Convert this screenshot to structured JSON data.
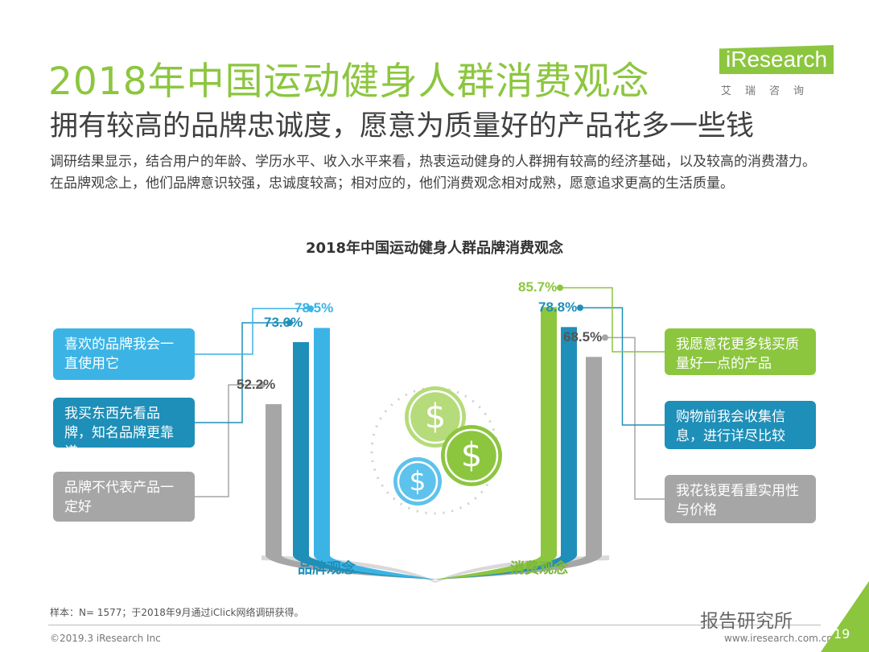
{
  "header": {
    "title": "2018年中国运动健身人群消费观念",
    "subtitle": "拥有较高的品牌忠诚度，愿意为质量好的产品花多一些钱",
    "description": "调研结果显示，结合用户的年龄、学历水平、收入水平来看，热衷运动健身的人群拥有较高的经济基础，以及较高的消费潜力。在品牌观念上，他们品牌意识较强，忠诚度较高；相对应的，他们消费观念相对成熟，愿意追求更高的生活质量。"
  },
  "logo": {
    "main": "iResearch",
    "sub": "艾瑞咨询"
  },
  "colors": {
    "green": "#8CC63F",
    "blue": "#3BB4E5",
    "teal": "#1E8FB8",
    "gray": "#A6A6A6",
    "text": "#404040"
  },
  "chart_data": {
    "type": "bar",
    "title": "2018年中国运动健身人群品牌消费观念",
    "groups": [
      {
        "name": "品牌观念",
        "items": [
          {
            "label": "喜欢的品牌我会一直使用它",
            "value": 78.5,
            "display": "78.5%",
            "color": "#3BB4E5"
          },
          {
            "label": "我买东西先看品牌，知名品牌更靠谱",
            "value": 73.6,
            "display": "73.6%",
            "color": "#1E8FB8"
          },
          {
            "label": "品牌不代表产品一定好",
            "value": 52.2,
            "display": "52.2%",
            "color": "#A6A6A6"
          }
        ]
      },
      {
        "name": "消费观念",
        "items": [
          {
            "label": "我愿意花更多钱买质量好一点的产品",
            "value": 85.7,
            "display": "85.7%",
            "color": "#8CC63F"
          },
          {
            "label": "购物前我会收集信息，进行详尽比较",
            "value": 78.8,
            "display": "78.8%",
            "color": "#1E8FB8"
          },
          {
            "label": "我花钱更看重实用性与价格",
            "value": 68.5,
            "display": "68.5%",
            "color": "#A6A6A6"
          }
        ]
      }
    ]
  },
  "footer": {
    "source": "样本：N= 1577；于2018年9月通过iClick网络调研获得。",
    "copyright": "©2019.3  iResearch Inc",
    "website": "www.iresearch.com.cn",
    "page": "19",
    "watermark": "报告研究所"
  }
}
